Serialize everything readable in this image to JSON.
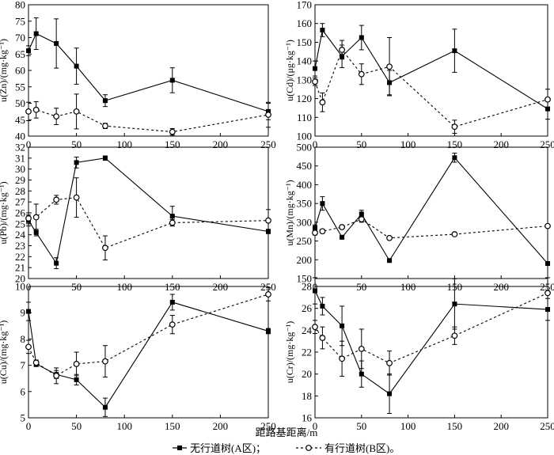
{
  "xlabel": "距路基距离/m",
  "legend": {
    "a_label": "无行道树(A区)；",
    "b_label": "有行道树(B区)。"
  },
  "chart_data": [
    {
      "type": "line",
      "id": "zn",
      "ylabel": "u(Zn)/(mg·kg⁻¹)",
      "ylim": [
        40,
        80
      ],
      "yticks": [
        40,
        45,
        50,
        55,
        60,
        65,
        70,
        75,
        80
      ],
      "xlim": [
        0,
        250
      ],
      "xticks": [
        0,
        50,
        100,
        150,
        200,
        250
      ],
      "x": [
        0,
        8,
        29,
        50,
        80,
        150,
        250
      ],
      "series": [
        {
          "name": "无行道树(A区)",
          "values": [
            66.0,
            71.2,
            68.2,
            61.3,
            50.8,
            57.0,
            47.5
          ],
          "err": [
            1.5,
            4.8,
            7.5,
            5.5,
            1.8,
            3.8,
            2.5
          ]
        },
        {
          "name": "有行道树(B区)",
          "values": [
            47.5,
            48.0,
            46.0,
            47.5,
            43.1,
            41.3,
            46.5
          ],
          "err": [
            2.8,
            2.5,
            2.5,
            5.3,
            0.8,
            1.0,
            3.8
          ]
        }
      ]
    },
    {
      "type": "line",
      "id": "cd",
      "ylabel": "u(Cd)/(μg·kg⁻¹)",
      "ylim": [
        100,
        170
      ],
      "yticks": [
        100,
        110,
        120,
        130,
        140,
        150,
        160,
        170
      ],
      "xlim": [
        0,
        250
      ],
      "xticks": [
        0,
        50,
        100,
        150,
        200,
        250
      ],
      "x": [
        0,
        8,
        29,
        50,
        80,
        150,
        250
      ],
      "series": [
        {
          "name": "无行道树(A区)",
          "values": [
            136,
            156.5,
            142.5,
            152.5,
            128.5,
            145.5,
            114.5
          ],
          "err": [
            4,
            3.5,
            6,
            6.5,
            6.5,
            11.5,
            5.5
          ]
        },
        {
          "name": "有行道树(B区)",
          "values": [
            129,
            118,
            146,
            133,
            137,
            105,
            119.5
          ],
          "err": [
            2,
            5,
            5,
            5.5,
            15.5,
            3.5,
            5.5
          ]
        }
      ]
    },
    {
      "type": "line",
      "id": "pb",
      "ylabel": "u(Pb)/(mg·kg⁻¹)",
      "ylim": [
        20,
        32
      ],
      "yticks": [
        20,
        21,
        22,
        23,
        24,
        25,
        26,
        27,
        28,
        29,
        30,
        31,
        32
      ],
      "xlim": [
        0,
        250
      ],
      "xticks": [
        0,
        50,
        100,
        150,
        200,
        250
      ],
      "x": [
        0,
        8,
        29,
        50,
        80,
        150,
        250
      ],
      "series": [
        {
          "name": "无行道树(A区)",
          "values": [
            25.3,
            24.2,
            21.4,
            30.6,
            31.0,
            25.7,
            24.3
          ],
          "err": [
            0.5,
            0.3,
            0.5,
            0.5,
            0.2,
            0.9,
            0.2
          ]
        },
        {
          "name": "有行道树(B区)",
          "values": [
            25.5,
            25.6,
            27.2,
            27.4,
            22.8,
            25.1,
            25.3
          ],
          "err": [
            0.5,
            1.2,
            0.4,
            1.8,
            1.1,
            0.3,
            1.0
          ]
        }
      ]
    },
    {
      "type": "line",
      "id": "mn",
      "ylabel": "u(Mn)/(mg·kg⁻¹)",
      "ylim": [
        150,
        500
      ],
      "yticks": [
        150,
        200,
        250,
        300,
        350,
        400,
        450,
        500
      ],
      "xlim": [
        0,
        250
      ],
      "xticks": [
        0,
        50,
        100,
        150,
        200,
        250
      ],
      "x": [
        0,
        8,
        29,
        50,
        80,
        150,
        250
      ],
      "series": [
        {
          "name": "无行道树(A区)",
          "values": [
            285,
            350,
            260,
            322,
            198,
            472,
            190
          ],
          "err": [
            8,
            18,
            5,
            10,
            3,
            12,
            3
          ]
        },
        {
          "name": "有行道树(B区)",
          "values": [
            272,
            276,
            287,
            308,
            258,
            268,
            290
          ],
          "err": [
            6,
            5,
            5,
            8,
            4,
            4,
            4
          ]
        }
      ]
    },
    {
      "type": "line",
      "id": "cu",
      "ylabel": "u(Cu)/(mg·kg⁻¹)",
      "ylim": [
        5,
        10
      ],
      "yticks": [
        5,
        6,
        7,
        8,
        9,
        10
      ],
      "xlim": [
        0,
        250
      ],
      "xticks": [
        0,
        50,
        100,
        150,
        200,
        250
      ],
      "x": [
        0,
        8,
        29,
        50,
        80,
        150,
        250
      ],
      "series": [
        {
          "name": "无行道树(A区)",
          "values": [
            9.05,
            7.05,
            6.65,
            6.45,
            5.4,
            9.4,
            8.3
          ],
          "err": [
            0.35,
            0.1,
            0.15,
            0.2,
            0.35,
            0.3,
            0.1
          ]
        },
        {
          "name": "有行道树(B区)",
          "values": [
            7.7,
            7.1,
            6.6,
            7.05,
            7.15,
            8.55,
            9.7
          ],
          "err": [
            0.25,
            0.1,
            0.3,
            0.45,
            0.6,
            0.35,
            0.25
          ]
        }
      ]
    },
    {
      "type": "line",
      "id": "cr",
      "ylabel": "u(Cr)/(mg·kg⁻¹)",
      "ylim": [
        16,
        28
      ],
      "yticks": [
        16,
        18,
        20,
        22,
        24,
        26,
        28
      ],
      "xlim": [
        0,
        250
      ],
      "xticks": [
        0,
        50,
        100,
        150,
        200,
        250
      ],
      "x": [
        0,
        8,
        29,
        50,
        80,
        150,
        250
      ],
      "series": [
        {
          "name": "无行道树(A区)",
          "values": [
            27.6,
            26.2,
            24.4,
            20.0,
            18.2,
            26.4,
            25.9
          ],
          "err": [
            1.2,
            0.8,
            1.8,
            1.2,
            1.8,
            2.3,
            1.0
          ]
        },
        {
          "name": "有行道树(B区)",
          "values": [
            24.3,
            23.3,
            21.4,
            22.3,
            21.0,
            23.5,
            27.4
          ],
          "err": [
            0.6,
            1.0,
            1.6,
            1.8,
            1.1,
            0.8,
            1.4
          ]
        }
      ]
    }
  ]
}
